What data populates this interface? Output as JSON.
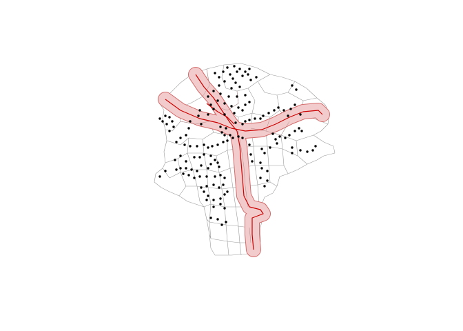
{
  "map": {
    "type": "choropleth-outline-with-points",
    "background_color": "#ffffff",
    "boundary_color": "#9a9a9a",
    "road_color": "#cc0000",
    "buffer_fill_color": "#e8a0a0",
    "buffer_stroke_color": "#d46a6a",
    "point_color": "#000000",
    "point_count": 170
  }
}
